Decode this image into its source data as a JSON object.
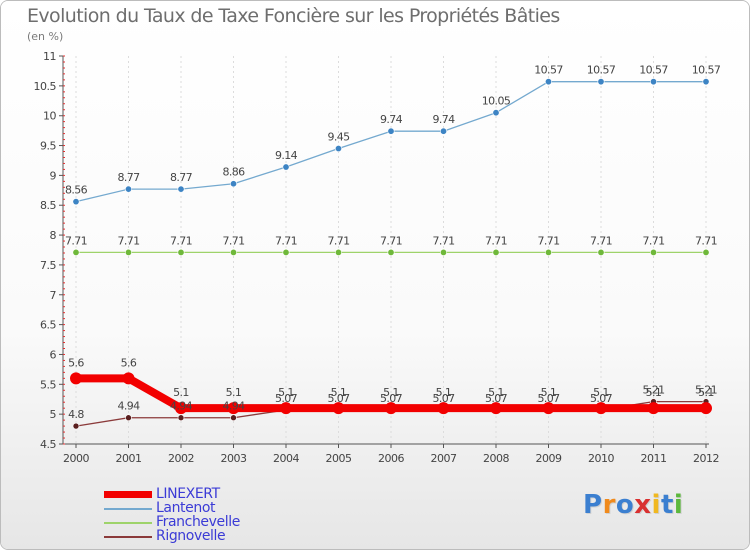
{
  "header": {
    "title": "Evolution du Taux de Taxe Foncière sur les Propriétés Bâties",
    "unit": "(en %)"
  },
  "chart_data": {
    "type": "line",
    "title": "Evolution du Taux de Taxe Foncière sur les Propriétés Bâties",
    "ylabel": "(en %)",
    "xlabel": "",
    "ylim": [
      4.5,
      11
    ],
    "yticks": [
      "4.5",
      "5",
      "5.5",
      "6",
      "6.5",
      "7",
      "7.5",
      "8",
      "8.5",
      "9",
      "9.5",
      "10",
      "10.5",
      "11"
    ],
    "categories": [
      "2000",
      "2001",
      "2002",
      "2003",
      "2004",
      "2005",
      "2006",
      "2007",
      "2008",
      "2009",
      "2010",
      "2011",
      "2012"
    ],
    "grid": "vertical",
    "series": [
      {
        "name": "Lantenot",
        "color": "#74a9cf",
        "marker": "#3d84c4",
        "values": [
          8.56,
          8.77,
          8.77,
          8.86,
          9.14,
          9.45,
          9.74,
          9.74,
          10.05,
          10.57,
          10.57,
          10.57,
          10.57
        ],
        "labels": [
          "8.56",
          "8.77",
          "8.77",
          "8.86",
          "9.14",
          "9.45",
          "9.74",
          "9.74",
          "10.05",
          "10.57",
          "10.57",
          "10.57",
          "10.57"
        ]
      },
      {
        "name": "Franchevelle",
        "color": "#9ed36a",
        "marker": "#6fb83a",
        "values": [
          7.71,
          7.71,
          7.71,
          7.71,
          7.71,
          7.71,
          7.71,
          7.71,
          7.71,
          7.71,
          7.71,
          7.71,
          7.71
        ],
        "labels": [
          "7.71",
          "7.71",
          "7.71",
          "7.71",
          "7.71",
          "7.71",
          "7.71",
          "7.71",
          "7.71",
          "7.71",
          "7.71",
          "7.71",
          "7.71"
        ]
      },
      {
        "name": "Rignovelle",
        "color": "#8b3a3a",
        "marker": "#5a1f1f",
        "values": [
          4.8,
          4.94,
          4.94,
          4.94,
          5.07,
          5.07,
          5.07,
          5.07,
          5.07,
          5.07,
          5.07,
          5.21,
          5.21
        ],
        "labels": [
          "4.8",
          "4.94",
          "4.94",
          "4.94",
          "5.07",
          "5.07",
          "5.07",
          "5.07",
          "5.07",
          "5.07",
          "5.07",
          "5.21",
          "5.21"
        ]
      },
      {
        "name": "LINEXERT",
        "color": "#f20000",
        "marker": "#f20000",
        "values": [
          5.6,
          5.6,
          5.1,
          5.1,
          5.1,
          5.1,
          5.1,
          5.1,
          5.1,
          5.1,
          5.1,
          5.1,
          5.1
        ],
        "labels": [
          "5.6",
          "5.6",
          "5.1",
          "5.1",
          "5.1",
          "5.1",
          "5.1",
          "5.1",
          "5.1",
          "5.1",
          "5.1",
          "5.1",
          "5.1"
        ]
      }
    ],
    "legend": [
      "LINEXERT",
      "Lantenot",
      "Franchevelle",
      "Rignovelle"
    ],
    "legend_position": "bottom-left"
  },
  "legend": {
    "items": [
      {
        "label": "LINEXERT",
        "color": "#f20000"
      },
      {
        "label": "Lantenot",
        "color": "#74a9cf"
      },
      {
        "label": "Franchevelle",
        "color": "#9ed36a"
      },
      {
        "label": "Rignovelle",
        "color": "#8b3a3a"
      }
    ]
  },
  "logo": {
    "letters": [
      "P",
      "r",
      "o",
      "x",
      "i",
      "t",
      "i"
    ],
    "colors": [
      "#3b7fd0",
      "#f08a1c",
      "#3b7fd0",
      "#d93030",
      "#f0b820",
      "#3b7fd0",
      "#5cb83c"
    ]
  }
}
